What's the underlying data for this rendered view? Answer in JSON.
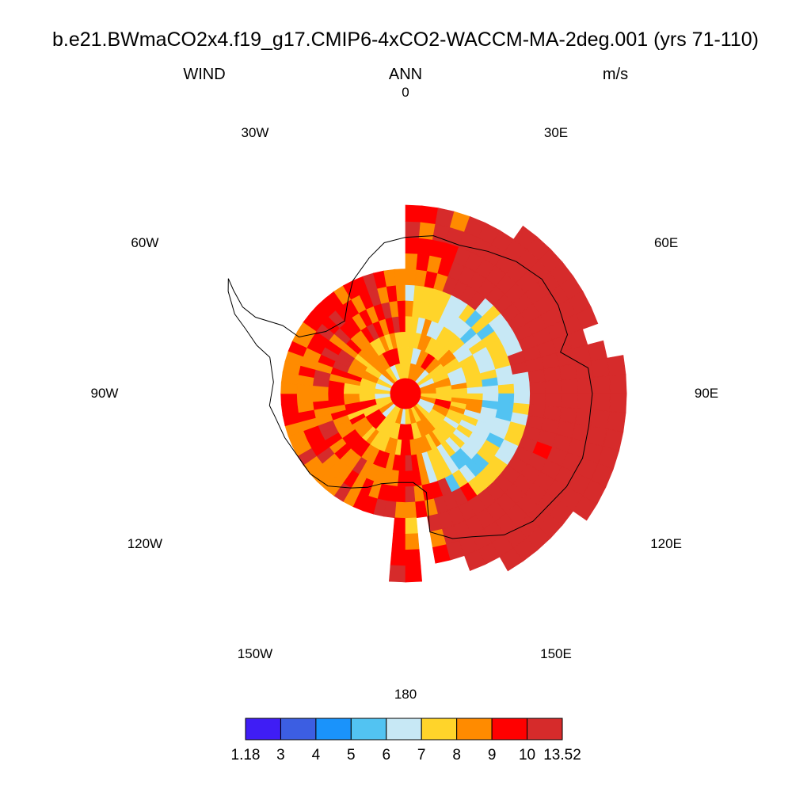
{
  "title": "b.e21.BWmaCO2x4.f19_g17.CMIP6-4xCO2-WACCM-MA-2deg.001 (yrs 71-110)",
  "left_label": "WIND",
  "center_label": "ANN",
  "right_label": "m/s",
  "map": {
    "projection": "polar-stereographic-south",
    "center_lat": -90,
    "outer_lat": -60,
    "longitude_labels": [
      {
        "lon": 0,
        "text": "0"
      },
      {
        "lon": 30,
        "text": "30E"
      },
      {
        "lon": 60,
        "text": "60E"
      },
      {
        "lon": 90,
        "text": "90E"
      },
      {
        "lon": 120,
        "text": "120E"
      },
      {
        "lon": 150,
        "text": "150E"
      },
      {
        "lon": 180,
        "text": "180"
      },
      {
        "lon": -150,
        "text": "150W"
      },
      {
        "lon": -120,
        "text": "120W"
      },
      {
        "lon": -90,
        "text": "90W"
      },
      {
        "lon": -60,
        "text": "60W"
      },
      {
        "lon": -30,
        "text": "30W"
      }
    ],
    "field_note": "Annual mean near-surface wind speed over Antarctica, 2-degree grid cells"
  },
  "colorbar": {
    "levels": [
      "1.18",
      "3",
      "4",
      "5",
      "6",
      "7",
      "8",
      "9",
      "10",
      "13.52"
    ],
    "colors": [
      "#3f1df5",
      "#3c5ee2",
      "#1a93fb",
      "#52c3f2",
      "#c7e8f5",
      "#ffd42a",
      "#ff8b00",
      "#ff0000",
      "#d62b2b"
    ]
  }
}
